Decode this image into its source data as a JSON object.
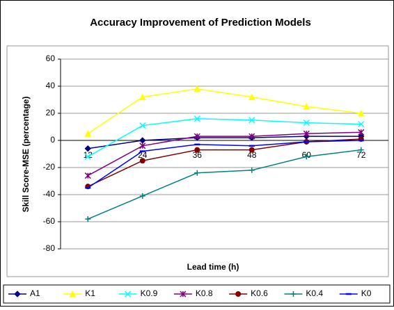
{
  "chart_data": {
    "type": "line",
    "title": "Accuracy Improvement of Prediction Models",
    "x_label": "Lead time (h)",
    "y_label": "Skill Score-MSE (percentage)",
    "categories": [
      "12",
      "24",
      "36",
      "48",
      "60",
      "72"
    ],
    "ylim": [
      -80,
      60
    ],
    "yticks": [
      -80,
      -60,
      -40,
      -20,
      0,
      20,
      40,
      60
    ],
    "grid": true,
    "legend": "bottom",
    "series": [
      {
        "name": "A1",
        "color": "#000080",
        "marker": "diamond",
        "values": [
          -6,
          0,
          2,
          2,
          3,
          3
        ]
      },
      {
        "name": "K1",
        "color": "#ffff00",
        "marker": "triangle",
        "values": [
          5,
          32,
          38,
          32,
          25,
          20
        ]
      },
      {
        "name": "K0.9",
        "color": "#00ffff",
        "marker": "x",
        "values": [
          -12,
          11,
          16,
          15,
          13,
          12
        ]
      },
      {
        "name": "K0.8",
        "color": "#800080",
        "marker": "star",
        "values": [
          -26,
          -4,
          3,
          3,
          5,
          6
        ]
      },
      {
        "name": "K0.6",
        "color": "#800000",
        "marker": "circle",
        "values": [
          -34,
          -15,
          -7,
          -7,
          -1,
          1
        ]
      },
      {
        "name": "K0.4",
        "color": "#008080",
        "marker": "plus",
        "values": [
          -58,
          -41,
          -24,
          -22,
          -12,
          -7
        ]
      },
      {
        "name": "K0",
        "color": "#0000ff",
        "marker": "dash",
        "values": [
          -35,
          -8,
          -3,
          -4,
          -1,
          0
        ]
      }
    ]
  }
}
